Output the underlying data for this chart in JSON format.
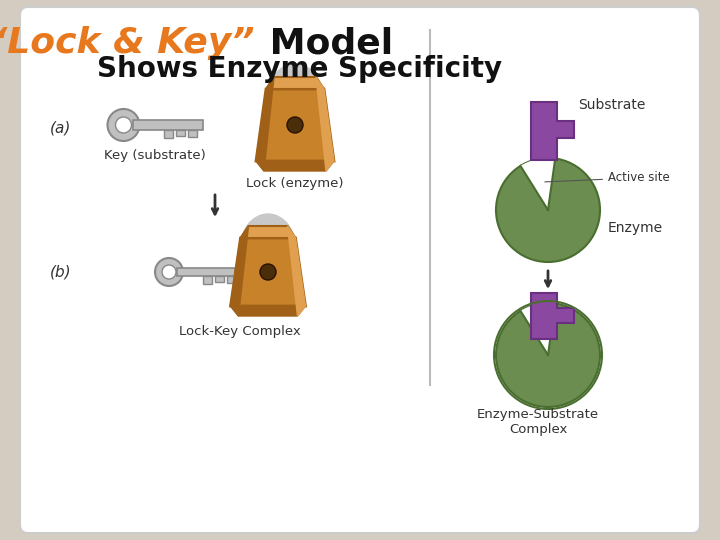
{
  "bg_outer": "#d4ccc0",
  "bg_inner": "#ffffff",
  "title_italic": "“Lock & Key”",
  "title_normal": " Model",
  "title_line2": "Shows Enzyme Specificity",
  "title_italic_color": "#e8781e",
  "title_normal_color": "#111111",
  "title_line2_color": "#111111",
  "label_a": "(a)",
  "label_b": "(b)",
  "key_substrate_label": "Key (substrate)",
  "lock_enzyme_label": "Lock (enzyme)",
  "lock_key_complex_label": "Lock-Key Complex",
  "substrate_label": "Substrate",
  "active_site_label": "Active site",
  "enzyme_label": "Enzyme",
  "enzyme_substrate_label": "Enzyme-Substrate\nComplex",
  "enzyme_color": "#6b8e50",
  "enzyme_edge": "#4a6e30",
  "substrate_color": "#8b48a0",
  "substrate_edge": "#6a3080",
  "lock_body_color": "#c8832a",
  "lock_body_dark": "#a06018",
  "lock_body_light": "#e0a050",
  "lock_shackle_color": "#c8c8c8",
  "lock_shackle_edge": "#a0a0a0",
  "key_color": "#c0c0c0",
  "key_edge": "#888888",
  "arrow_color": "#333333",
  "label_color": "#333333",
  "divider_color": "#bbbbbb"
}
